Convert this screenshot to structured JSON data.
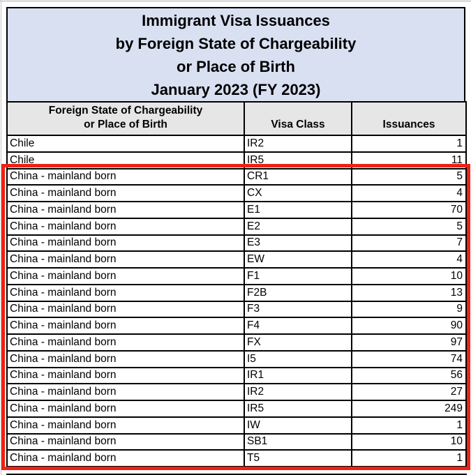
{
  "title": {
    "lines": [
      "Immigrant Visa Issuances",
      "by Foreign State of Chargeability",
      "or Place of Birth",
      "January 2023 (FY 2023)"
    ]
  },
  "table": {
    "header": {
      "state_line1": "Foreign State of Chargeability",
      "state_line2": "or Place of Birth",
      "visa_class": "Visa Class",
      "issuances": "Issuances"
    },
    "rows": [
      {
        "state": "Chile",
        "visa_class": "IR2",
        "issuances": "1",
        "highlighted": false
      },
      {
        "state": "Chile",
        "visa_class": "IR5",
        "issuances": "11",
        "highlighted": false
      },
      {
        "state": "China - mainland born",
        "visa_class": "CR1",
        "issuances": "5",
        "highlighted": true
      },
      {
        "state": "China - mainland born",
        "visa_class": "CX",
        "issuances": "4",
        "highlighted": true
      },
      {
        "state": "China - mainland born",
        "visa_class": "E1",
        "issuances": "70",
        "highlighted": true
      },
      {
        "state": "China - mainland born",
        "visa_class": "E2",
        "issuances": "5",
        "highlighted": true
      },
      {
        "state": "China - mainland born",
        "visa_class": "E3",
        "issuances": "7",
        "highlighted": true
      },
      {
        "state": "China - mainland born",
        "visa_class": "EW",
        "issuances": "4",
        "highlighted": true
      },
      {
        "state": "China - mainland born",
        "visa_class": "F1",
        "issuances": "10",
        "highlighted": true
      },
      {
        "state": "China - mainland born",
        "visa_class": "F2B",
        "issuances": "13",
        "highlighted": true
      },
      {
        "state": "China - mainland born",
        "visa_class": "F3",
        "issuances": "9",
        "highlighted": true
      },
      {
        "state": "China - mainland born",
        "visa_class": "F4",
        "issuances": "90",
        "highlighted": true
      },
      {
        "state": "China - mainland born",
        "visa_class": "FX",
        "issuances": "97",
        "highlighted": true
      },
      {
        "state": "China - mainland born",
        "visa_class": "I5",
        "issuances": "74",
        "highlighted": true
      },
      {
        "state": "China - mainland born",
        "visa_class": "IR1",
        "issuances": "56",
        "highlighted": true
      },
      {
        "state": "China - mainland born",
        "visa_class": "IR2",
        "issuances": "27",
        "highlighted": true
      },
      {
        "state": "China - mainland born",
        "visa_class": "IR5",
        "issuances": "249",
        "highlighted": true
      },
      {
        "state": "China - mainland born",
        "visa_class": "IW",
        "issuances": "1",
        "highlighted": true
      },
      {
        "state": "China - mainland born",
        "visa_class": "SB1",
        "issuances": "10",
        "highlighted": true
      },
      {
        "state": "China - mainland born",
        "visa_class": "T5",
        "issuances": "1",
        "highlighted": true
      }
    ]
  },
  "colors": {
    "title_background": "#d9e0f2",
    "header_background": "#e6e6e6",
    "table_border": "#000000",
    "highlight_border": "#ee2213"
  }
}
